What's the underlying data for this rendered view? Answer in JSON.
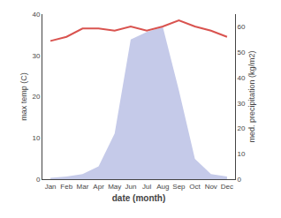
{
  "chart_data": {
    "type": "line",
    "categories": [
      "Jan",
      "Feb",
      "Mar",
      "Apr",
      "May",
      "Jun",
      "Jul",
      "Aug",
      "Sep",
      "Oct",
      "Nov",
      "Dec"
    ],
    "series": [
      {
        "type": "area",
        "axis": "y2",
        "color": "#c5cae9",
        "values": [
          0.5,
          1.0,
          2.0,
          5.0,
          18.0,
          55.0,
          58.0,
          60.0,
          35.0,
          8.0,
          2.0,
          1.0
        ]
      },
      {
        "type": "line",
        "axis": "y",
        "color": "#d9534f",
        "values": [
          33.5,
          34.5,
          36.5,
          36.5,
          36.0,
          37.0,
          36.0,
          37.0,
          38.5,
          37.0,
          36.0,
          34.5
        ]
      }
    ],
    "xlabel": "date (month)",
    "ylabel": "max temp (C)",
    "y2label": "med. precipitation (kg/m2)",
    "ylim": [
      0,
      40
    ],
    "yticks": [
      0,
      10,
      20,
      30,
      40
    ],
    "y2lim": [
      0,
      65
    ],
    "y2ticks": [
      0,
      10,
      20,
      30,
      40,
      50,
      60
    ],
    "grid": false
  }
}
